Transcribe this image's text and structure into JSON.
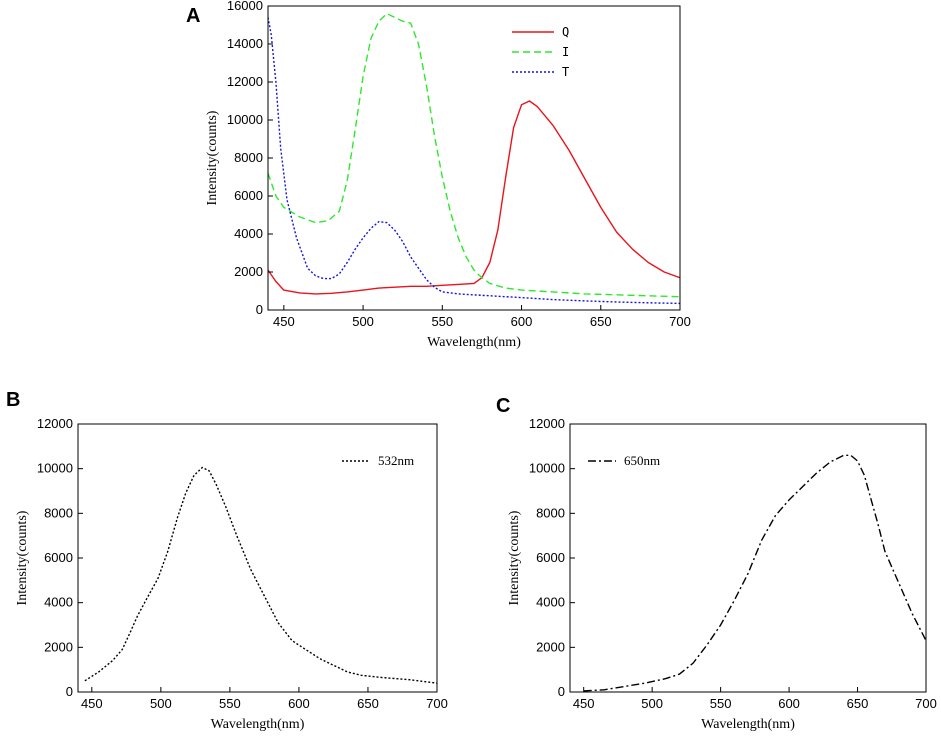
{
  "chart_data": [
    {
      "panel": "A",
      "type": "line",
      "title": "",
      "xlabel": "Wavelength(nm)",
      "ylabel": "Intensity(counts)",
      "xlim": [
        440,
        700
      ],
      "ylim": [
        0,
        16000
      ],
      "xticks": [
        450,
        500,
        550,
        600,
        650,
        700
      ],
      "yticks": [
        0,
        2000,
        4000,
        6000,
        8000,
        10000,
        12000,
        14000,
        16000
      ],
      "legend_position": "top-right",
      "series": [
        {
          "name": "Q",
          "color": "#e8141c",
          "style": "solid",
          "points": [
            [
              440,
              2100
            ],
            [
              445,
              1500
            ],
            [
              450,
              1050
            ],
            [
              460,
              900
            ],
            [
              470,
              850
            ],
            [
              480,
              880
            ],
            [
              490,
              950
            ],
            [
              500,
              1050
            ],
            [
              510,
              1150
            ],
            [
              520,
              1200
            ],
            [
              530,
              1250
            ],
            [
              540,
              1250
            ],
            [
              550,
              1300
            ],
            [
              560,
              1350
            ],
            [
              570,
              1400
            ],
            [
              575,
              1700
            ],
            [
              580,
              2500
            ],
            [
              585,
              4200
            ],
            [
              590,
              7000
            ],
            [
              595,
              9600
            ],
            [
              600,
              10800
            ],
            [
              605,
              11000
            ],
            [
              610,
              10700
            ],
            [
              620,
              9700
            ],
            [
              630,
              8400
            ],
            [
              640,
              6900
            ],
            [
              650,
              5400
            ],
            [
              660,
              4100
            ],
            [
              670,
              3200
            ],
            [
              680,
              2500
            ],
            [
              690,
              2000
            ],
            [
              700,
              1700
            ]
          ]
        },
        {
          "name": "I",
          "color": "#2ee82e",
          "style": "dashed",
          "points": [
            [
              440,
              7200
            ],
            [
              445,
              6000
            ],
            [
              450,
              5400
            ],
            [
              460,
              4900
            ],
            [
              470,
              4600
            ],
            [
              478,
              4700
            ],
            [
              485,
              5200
            ],
            [
              490,
              6800
            ],
            [
              495,
              9500
            ],
            [
              500,
              12300
            ],
            [
              505,
              14300
            ],
            [
              510,
              15200
            ],
            [
              515,
              15600
            ],
            [
              520,
              15400
            ],
            [
              525,
              15200
            ],
            [
              530,
              15100
            ],
            [
              535,
              14000
            ],
            [
              540,
              11800
            ],
            [
              545,
              9200
            ],
            [
              550,
              7000
            ],
            [
              555,
              5200
            ],
            [
              560,
              3800
            ],
            [
              565,
              2800
            ],
            [
              570,
              2100
            ],
            [
              575,
              1700
            ],
            [
              580,
              1400
            ],
            [
              590,
              1150
            ],
            [
              600,
              1050
            ],
            [
              620,
              950
            ],
            [
              640,
              850
            ],
            [
              660,
              800
            ],
            [
              680,
              750
            ],
            [
              700,
              700
            ]
          ]
        },
        {
          "name": "T",
          "color": "#1414dc",
          "style": "dotted",
          "points": [
            [
              440,
              15400
            ],
            [
              442,
              14500
            ],
            [
              445,
              12000
            ],
            [
              448,
              8500
            ],
            [
              452,
              5800
            ],
            [
              458,
              3800
            ],
            [
              465,
              2200
            ],
            [
              470,
              1800
            ],
            [
              475,
              1650
            ],
            [
              480,
              1650
            ],
            [
              485,
              1900
            ],
            [
              490,
              2500
            ],
            [
              495,
              3200
            ],
            [
              500,
              3800
            ],
            [
              505,
              4300
            ],
            [
              510,
              4650
            ],
            [
              515,
              4600
            ],
            [
              520,
              4200
            ],
            [
              525,
              3600
            ],
            [
              530,
              2800
            ],
            [
              535,
              2200
            ],
            [
              540,
              1600
            ],
            [
              545,
              1200
            ],
            [
              550,
              950
            ],
            [
              560,
              850
            ],
            [
              580,
              750
            ],
            [
              600,
              650
            ],
            [
              620,
              550
            ],
            [
              640,
              480
            ],
            [
              660,
              420
            ],
            [
              680,
              380
            ],
            [
              700,
              350
            ]
          ]
        }
      ]
    },
    {
      "panel": "B",
      "type": "line",
      "title": "",
      "xlabel": "Wavelength(nm)",
      "ylabel": "Intensity(counts)",
      "xlim": [
        440,
        700
      ],
      "ylim": [
        0,
        12000
      ],
      "xticks": [
        450,
        500,
        550,
        600,
        650,
        700
      ],
      "yticks": [
        0,
        2000,
        4000,
        6000,
        8000,
        10000,
        12000
      ],
      "legend_position": "top-right",
      "series": [
        {
          "name": "532nm",
          "color": "#000000",
          "style": "dotted",
          "points": [
            [
              445,
              500
            ],
            [
              455,
              900
            ],
            [
              465,
              1400
            ],
            [
              472,
              1900
            ],
            [
              478,
              2700
            ],
            [
              483,
              3400
            ],
            [
              490,
              4200
            ],
            [
              498,
              5100
            ],
            [
              505,
              6300
            ],
            [
              512,
              7800
            ],
            [
              518,
              8900
            ],
            [
              524,
              9700
            ],
            [
              530,
              10050
            ],
            [
              535,
              9900
            ],
            [
              540,
              9300
            ],
            [
              547,
              8300
            ],
            [
              555,
              7000
            ],
            [
              565,
              5500
            ],
            [
              575,
              4300
            ],
            [
              585,
              3100
            ],
            [
              595,
              2300
            ],
            [
              605,
              1900
            ],
            [
              615,
              1500
            ],
            [
              625,
              1200
            ],
            [
              635,
              900
            ],
            [
              645,
              750
            ],
            [
              660,
              650
            ],
            [
              680,
              550
            ],
            [
              700,
              400
            ]
          ]
        }
      ]
    },
    {
      "panel": "C",
      "type": "line",
      "title": "",
      "xlabel": "Wavelength(nm)",
      "ylabel": "Intensity(counts)",
      "xlim": [
        440,
        700
      ],
      "ylim": [
        0,
        12000
      ],
      "xticks": [
        450,
        500,
        550,
        600,
        650,
        700
      ],
      "yticks": [
        0,
        2000,
        4000,
        6000,
        8000,
        10000,
        12000
      ],
      "legend_position": "top-left",
      "series": [
        {
          "name": "650nm",
          "color": "#000000",
          "style": "dashdot",
          "points": [
            [
              450,
              50
            ],
            [
              465,
              100
            ],
            [
              480,
              250
            ],
            [
              495,
              400
            ],
            [
              510,
              600
            ],
            [
              520,
              800
            ],
            [
              530,
              1300
            ],
            [
              540,
              2100
            ],
            [
              550,
              3000
            ],
            [
              560,
              4100
            ],
            [
              570,
              5300
            ],
            [
              580,
              6800
            ],
            [
              590,
              7900
            ],
            [
              600,
              8600
            ],
            [
              610,
              9200
            ],
            [
              620,
              9800
            ],
            [
              630,
              10300
            ],
            [
              640,
              10600
            ],
            [
              645,
              10600
            ],
            [
              650,
              10350
            ],
            [
              655,
              9700
            ],
            [
              660,
              8600
            ],
            [
              665,
              7500
            ],
            [
              670,
              6300
            ],
            [
              680,
              4900
            ],
            [
              690,
              3500
            ],
            [
              700,
              2300
            ]
          ]
        }
      ]
    }
  ]
}
